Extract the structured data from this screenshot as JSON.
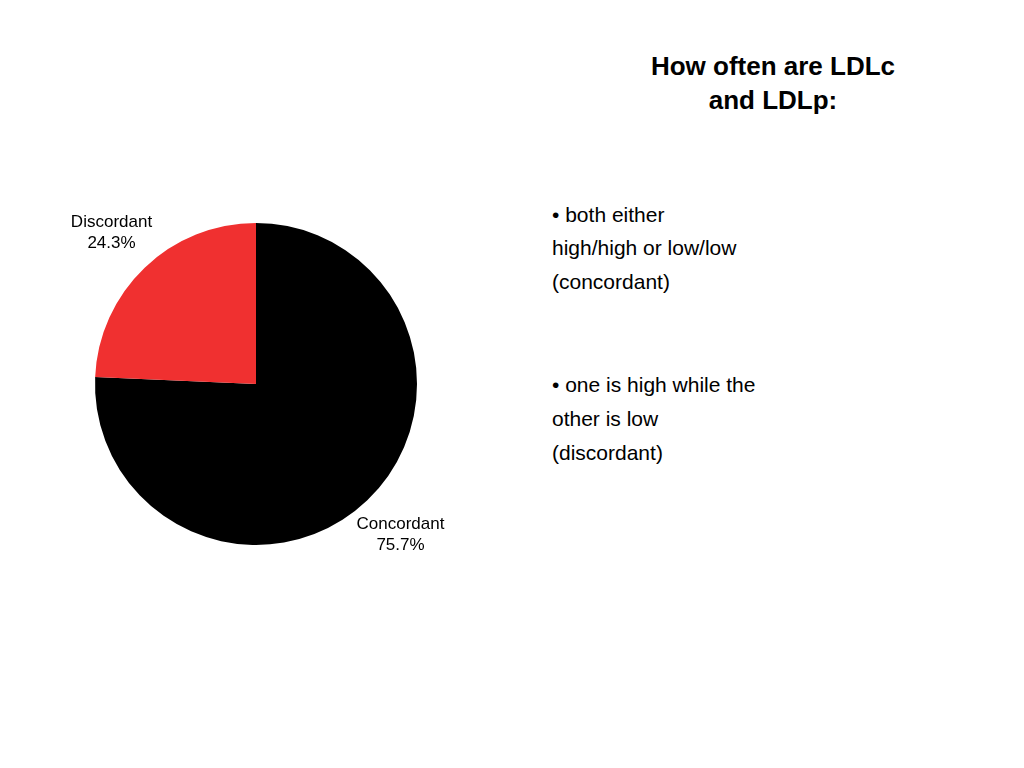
{
  "chart_data": {
    "type": "pie",
    "title": "How often are LDLc\nand LDLp:",
    "categories": [
      "Concordant",
      "Discordant"
    ],
    "values": [
      75.7,
      24.3
    ],
    "value_labels": [
      "75.7%",
      "24.3%"
    ],
    "data_labels": true,
    "colors": [
      "#000000",
      "#f03030"
    ],
    "annotations": [
      "• both either\nhigh/high or low/low\n(concordant)",
      "• one is high while the\nother is low\n(discordant)"
    ]
  }
}
